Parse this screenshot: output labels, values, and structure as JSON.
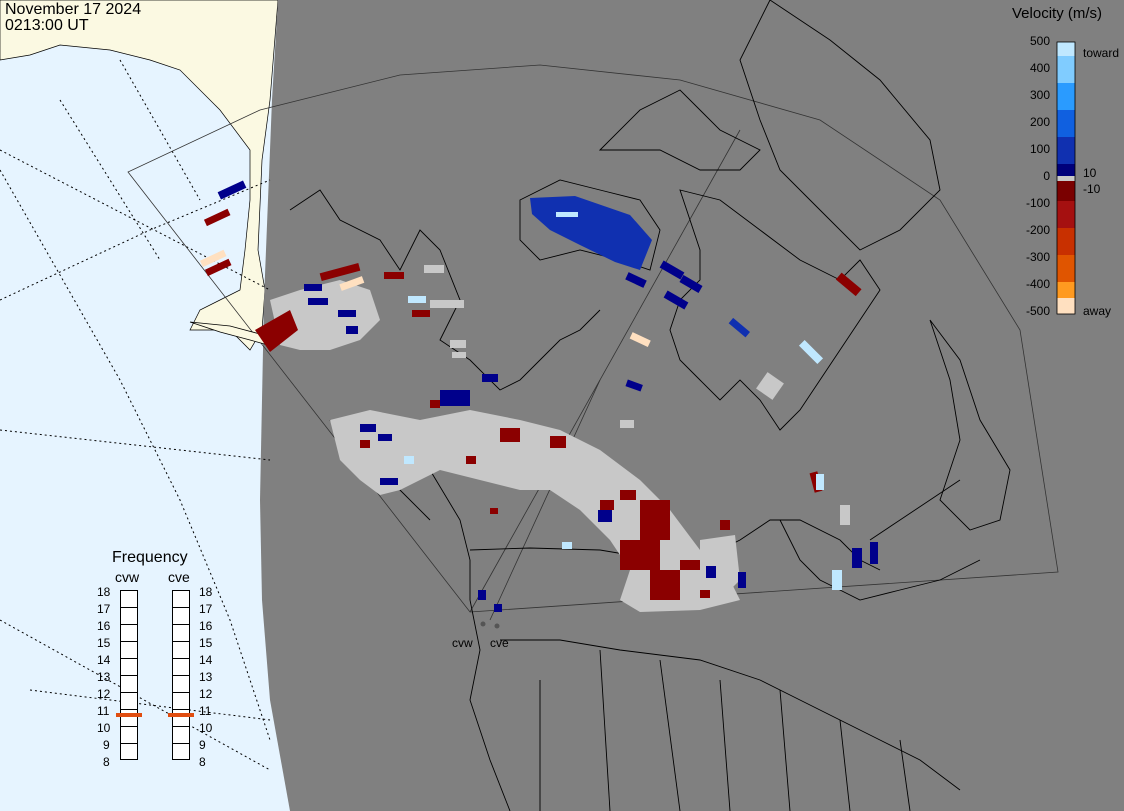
{
  "header": {
    "date": "November 17 2024",
    "time": "0213:00 UT"
  },
  "colorbar": {
    "title": "Velocity (m/s)",
    "ticks": [
      "500",
      "400",
      "300",
      "200",
      "100",
      "10",
      "0",
      "-10",
      "-100",
      "-200",
      "-300",
      "-400",
      "-500"
    ],
    "toward_label": "toward",
    "away_label": "away",
    "colors": [
      "#ffe0c0",
      "#ff9a20",
      "#e05500",
      "#a51010",
      "#7a0000",
      "#c8c8c8",
      "#00007a",
      "#1030b0",
      "#1060e0",
      "#50aaff",
      "#c0e8ff"
    ]
  },
  "frequency": {
    "title": "Frequency",
    "radars": [
      {
        "name": "cvw",
        "value_mhz": 11
      },
      {
        "name": "cve",
        "value_mhz": 11
      }
    ],
    "ticks": [
      "18",
      "17",
      "16",
      "15",
      "14",
      "13",
      "12",
      "11",
      "10",
      "9",
      "8"
    ],
    "marker_color": "#e04d10"
  },
  "map": {
    "ocean_color": "#e6f4ff",
    "land_color": "#fbf9e2",
    "globe_color": "#808080",
    "ground_scatter_color": "#c8c8c8",
    "sites": [
      {
        "name": "cvw"
      },
      {
        "name": "cve"
      }
    ]
  }
}
